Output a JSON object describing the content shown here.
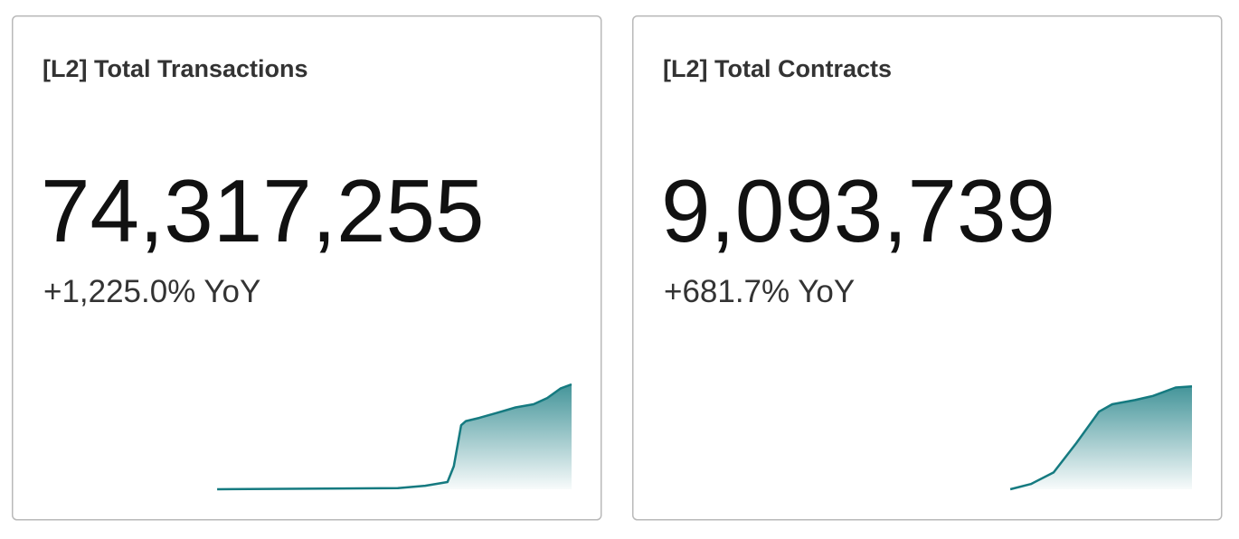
{
  "chart_data": [
    {
      "type": "area",
      "title": "[L2] Total Transactions",
      "annotations": [
        "74,317,255",
        "+1,225.0% YoY"
      ],
      "color": "#157a80",
      "x": [
        32.9,
        67.1,
        72.3,
        76.5,
        77.7,
        79.1,
        80.0,
        82.5,
        86.0,
        89.4,
        92.8,
        95.4,
        97.9,
        100
      ],
      "values": [
        0,
        1,
        3.4,
        6.9,
        22,
        61,
        65,
        68,
        73,
        78,
        81,
        87,
        96,
        100
      ],
      "xlim": [
        0,
        100
      ],
      "ylim": [
        0,
        100
      ]
    },
    {
      "type": "area",
      "title": "[L2] Total Contracts",
      "annotations": [
        "9,093,739",
        "+681.7% YoY"
      ],
      "color": "#157a80",
      "x": [
        65.6,
        69.5,
        73.8,
        78.1,
        82.4,
        84.9,
        89.2,
        92.6,
        96.9,
        100
      ],
      "values": [
        0,
        5,
        16,
        44,
        74,
        81,
        85,
        89,
        97,
        98
      ],
      "xlim": [
        0,
        100
      ],
      "ylim": [
        0,
        100
      ]
    }
  ]
}
